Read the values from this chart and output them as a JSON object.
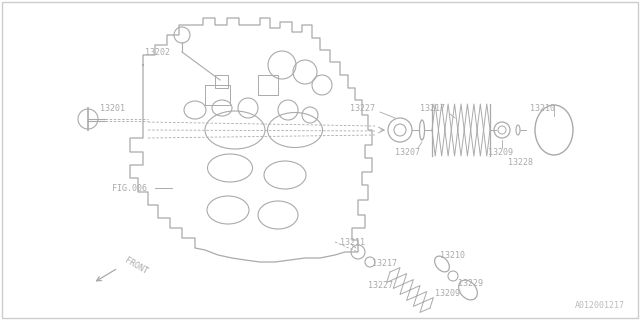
{
  "bg_color": "#ffffff",
  "line_color": "#aaaaaa",
  "text_color": "#aaaaaa",
  "fig_width": 6.4,
  "fig_height": 3.2,
  "watermark": "A012001217",
  "border_color": "#cccccc"
}
